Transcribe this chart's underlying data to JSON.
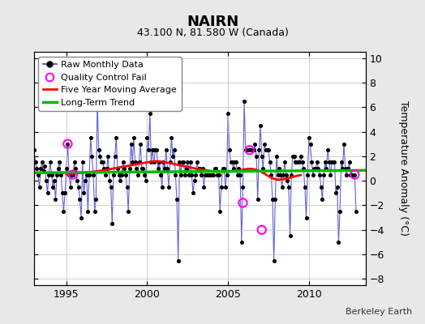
{
  "title": "NAIRN",
  "subtitle": "43.100 N, 81.580 W (Canada)",
  "ylabel": "Temperature Anomaly (°C)",
  "attribution": "Berkeley Earth",
  "xlim": [
    1993.0,
    2013.5
  ],
  "ylim": [
    -8.5,
    10.5
  ],
  "yticks": [
    -8,
    -6,
    -4,
    -2,
    0,
    2,
    4,
    6,
    8,
    10
  ],
  "xticks": [
    1995,
    2000,
    2005,
    2010
  ],
  "fig_bg_color": "#e8e8e8",
  "plot_bg_color": "#ffffff",
  "raw_color": "#4444cc",
  "dot_color": "#000000",
  "ma_color": "#ff0000",
  "trend_color": "#00bb00",
  "qc_color": "#ff00ff",
  "raw_data": [
    [
      1993.0,
      2.5
    ],
    [
      1993.083,
      1.5
    ],
    [
      1993.167,
      1.0
    ],
    [
      1993.25,
      0.5
    ],
    [
      1993.333,
      -0.5
    ],
    [
      1993.417,
      1.0
    ],
    [
      1993.5,
      1.5
    ],
    [
      1993.583,
      0.8
    ],
    [
      1993.667,
      1.2
    ],
    [
      1993.75,
      0.0
    ],
    [
      1993.833,
      -1.0
    ],
    [
      1993.917,
      0.5
    ],
    [
      1994.0,
      1.5
    ],
    [
      1994.083,
      0.5
    ],
    [
      1994.167,
      -0.5
    ],
    [
      1994.25,
      0.0
    ],
    [
      1994.333,
      -1.5
    ],
    [
      1994.417,
      0.5
    ],
    [
      1994.5,
      1.0
    ],
    [
      1994.583,
      1.5
    ],
    [
      1994.667,
      0.5
    ],
    [
      1994.75,
      -1.0
    ],
    [
      1994.833,
      -2.5
    ],
    [
      1994.917,
      -1.0
    ],
    [
      1995.0,
      1.0
    ],
    [
      1995.083,
      3.0
    ],
    [
      1995.167,
      0.5
    ],
    [
      1995.25,
      -0.5
    ],
    [
      1995.333,
      0.5
    ],
    [
      1995.417,
      0.5
    ],
    [
      1995.5,
      1.5
    ],
    [
      1995.583,
      1.0
    ],
    [
      1995.667,
      0.0
    ],
    [
      1995.75,
      -0.5
    ],
    [
      1995.833,
      -1.5
    ],
    [
      1995.917,
      -3.0
    ],
    [
      1996.0,
      1.5
    ],
    [
      1996.083,
      -1.0
    ],
    [
      1996.167,
      0.0
    ],
    [
      1996.25,
      0.5
    ],
    [
      1996.333,
      -2.5
    ],
    [
      1996.417,
      0.5
    ],
    [
      1996.5,
      3.5
    ],
    [
      1996.583,
      2.0
    ],
    [
      1996.667,
      0.5
    ],
    [
      1996.75,
      -2.5
    ],
    [
      1996.833,
      -1.5
    ],
    [
      1996.917,
      6.5
    ],
    [
      1997.0,
      2.5
    ],
    [
      1997.083,
      2.0
    ],
    [
      1997.167,
      1.5
    ],
    [
      1997.25,
      1.5
    ],
    [
      1997.333,
      1.0
    ],
    [
      1997.417,
      0.5
    ],
    [
      1997.5,
      1.0
    ],
    [
      1997.583,
      2.0
    ],
    [
      1997.667,
      0.0
    ],
    [
      1997.75,
      -0.5
    ],
    [
      1997.833,
      -3.5
    ],
    [
      1997.917,
      0.5
    ],
    [
      1998.0,
      2.0
    ],
    [
      1998.083,
      3.5
    ],
    [
      1998.167,
      1.0
    ],
    [
      1998.25,
      0.5
    ],
    [
      1998.333,
      0.0
    ],
    [
      1998.417,
      0.5
    ],
    [
      1998.5,
      1.5
    ],
    [
      1998.583,
      1.0
    ],
    [
      1998.667,
      0.5
    ],
    [
      1998.75,
      -0.5
    ],
    [
      1998.833,
      -2.5
    ],
    [
      1998.917,
      1.0
    ],
    [
      1999.0,
      3.0
    ],
    [
      1999.083,
      1.5
    ],
    [
      1999.167,
      3.5
    ],
    [
      1999.25,
      1.5
    ],
    [
      1999.333,
      1.0
    ],
    [
      1999.417,
      0.5
    ],
    [
      1999.5,
      1.5
    ],
    [
      1999.583,
      3.0
    ],
    [
      1999.667,
      1.0
    ],
    [
      1999.75,
      1.0
    ],
    [
      1999.833,
      0.5
    ],
    [
      1999.917,
      0.0
    ],
    [
      2000.0,
      3.5
    ],
    [
      2000.083,
      2.5
    ],
    [
      2000.167,
      5.5
    ],
    [
      2000.25,
      1.5
    ],
    [
      2000.333,
      2.5
    ],
    [
      2000.417,
      1.5
    ],
    [
      2000.5,
      2.5
    ],
    [
      2000.583,
      2.5
    ],
    [
      2000.667,
      1.0
    ],
    [
      2000.75,
      1.5
    ],
    [
      2000.833,
      0.5
    ],
    [
      2000.917,
      -0.5
    ],
    [
      2001.0,
      1.5
    ],
    [
      2001.083,
      1.0
    ],
    [
      2001.167,
      2.5
    ],
    [
      2001.25,
      1.0
    ],
    [
      2001.333,
      -0.5
    ],
    [
      2001.417,
      1.5
    ],
    [
      2001.5,
      3.5
    ],
    [
      2001.583,
      2.0
    ],
    [
      2001.667,
      2.5
    ],
    [
      2001.75,
      0.5
    ],
    [
      2001.833,
      -1.5
    ],
    [
      2001.917,
      -6.5
    ],
    [
      2002.0,
      1.5
    ],
    [
      2002.083,
      0.5
    ],
    [
      2002.167,
      1.5
    ],
    [
      2002.25,
      1.5
    ],
    [
      2002.333,
      0.5
    ],
    [
      2002.417,
      1.0
    ],
    [
      2002.5,
      1.5
    ],
    [
      2002.583,
      0.5
    ],
    [
      2002.667,
      1.5
    ],
    [
      2002.75,
      0.5
    ],
    [
      2002.833,
      -1.0
    ],
    [
      2002.917,
      0.0
    ],
    [
      2003.0,
      0.5
    ],
    [
      2003.083,
      1.5
    ],
    [
      2003.167,
      1.0
    ],
    [
      2003.25,
      1.0
    ],
    [
      2003.333,
      0.5
    ],
    [
      2003.417,
      1.0
    ],
    [
      2003.5,
      -0.5
    ],
    [
      2003.583,
      0.5
    ],
    [
      2003.667,
      0.5
    ],
    [
      2003.75,
      0.5
    ],
    [
      2003.833,
      0.5
    ],
    [
      2003.917,
      0.5
    ],
    [
      2004.0,
      0.5
    ],
    [
      2004.083,
      0.5
    ],
    [
      2004.167,
      1.0
    ],
    [
      2004.25,
      1.0
    ],
    [
      2004.333,
      0.5
    ],
    [
      2004.417,
      0.5
    ],
    [
      2004.5,
      -2.5
    ],
    [
      2004.583,
      -0.5
    ],
    [
      2004.667,
      1.0
    ],
    [
      2004.75,
      1.0
    ],
    [
      2004.833,
      -0.5
    ],
    [
      2004.917,
      0.5
    ],
    [
      2005.0,
      5.5
    ],
    [
      2005.083,
      2.5
    ],
    [
      2005.167,
      1.5
    ],
    [
      2005.25,
      1.5
    ],
    [
      2005.333,
      1.0
    ],
    [
      2005.417,
      1.5
    ],
    [
      2005.5,
      1.5
    ],
    [
      2005.583,
      0.5
    ],
    [
      2005.667,
      1.0
    ],
    [
      2005.75,
      0.5
    ],
    [
      2005.833,
      -5.0
    ],
    [
      2005.917,
      -0.5
    ],
    [
      2006.0,
      6.5
    ],
    [
      2006.083,
      2.5
    ],
    [
      2006.167,
      2.5
    ],
    [
      2006.25,
      2.5
    ],
    [
      2006.333,
      2.5
    ],
    [
      2006.417,
      2.5
    ],
    [
      2006.5,
      2.5
    ],
    [
      2006.583,
      2.5
    ],
    [
      2006.667,
      3.0
    ],
    [
      2006.75,
      2.0
    ],
    [
      2006.833,
      -1.5
    ],
    [
      2006.917,
      2.5
    ],
    [
      2007.0,
      4.5
    ],
    [
      2007.083,
      2.0
    ],
    [
      2007.167,
      1.0
    ],
    [
      2007.25,
      3.0
    ],
    [
      2007.333,
      2.5
    ],
    [
      2007.417,
      2.5
    ],
    [
      2007.5,
      2.5
    ],
    [
      2007.583,
      1.5
    ],
    [
      2007.667,
      0.5
    ],
    [
      2007.75,
      -1.5
    ],
    [
      2007.833,
      -6.5
    ],
    [
      2007.917,
      -1.5
    ],
    [
      2008.0,
      2.0
    ],
    [
      2008.083,
      0.5
    ],
    [
      2008.167,
      1.0
    ],
    [
      2008.25,
      0.5
    ],
    [
      2008.333,
      -0.5
    ],
    [
      2008.417,
      0.5
    ],
    [
      2008.5,
      1.5
    ],
    [
      2008.583,
      0.5
    ],
    [
      2008.667,
      0.0
    ],
    [
      2008.75,
      -0.5
    ],
    [
      2008.833,
      -4.5
    ],
    [
      2008.917,
      0.5
    ],
    [
      2009.0,
      2.0
    ],
    [
      2009.083,
      2.0
    ],
    [
      2009.167,
      1.5
    ],
    [
      2009.25,
      1.5
    ],
    [
      2009.333,
      1.5
    ],
    [
      2009.417,
      1.5
    ],
    [
      2009.5,
      2.0
    ],
    [
      2009.583,
      1.5
    ],
    [
      2009.667,
      1.0
    ],
    [
      2009.75,
      -0.5
    ],
    [
      2009.833,
      -3.0
    ],
    [
      2009.917,
      0.5
    ],
    [
      2010.0,
      3.5
    ],
    [
      2010.083,
      3.0
    ],
    [
      2010.167,
      1.5
    ],
    [
      2010.25,
      0.5
    ],
    [
      2010.333,
      1.0
    ],
    [
      2010.417,
      1.0
    ],
    [
      2010.5,
      1.5
    ],
    [
      2010.583,
      1.0
    ],
    [
      2010.667,
      0.5
    ],
    [
      2010.75,
      -0.5
    ],
    [
      2010.833,
      -1.5
    ],
    [
      2010.917,
      0.5
    ],
    [
      2011.0,
      1.5
    ],
    [
      2011.083,
      1.0
    ],
    [
      2011.167,
      2.5
    ],
    [
      2011.25,
      1.5
    ],
    [
      2011.333,
      0.5
    ],
    [
      2011.417,
      1.5
    ],
    [
      2011.5,
      1.5
    ],
    [
      2011.583,
      1.5
    ],
    [
      2011.667,
      -1.0
    ],
    [
      2011.75,
      -0.5
    ],
    [
      2011.833,
      -5.0
    ],
    [
      2011.917,
      -2.5
    ],
    [
      2012.0,
      1.5
    ],
    [
      2012.083,
      1.0
    ],
    [
      2012.167,
      3.0
    ],
    [
      2012.25,
      1.0
    ],
    [
      2012.333,
      0.5
    ],
    [
      2012.417,
      1.0
    ],
    [
      2012.5,
      1.5
    ],
    [
      2012.583,
      0.5
    ],
    [
      2012.667,
      0.5
    ],
    [
      2012.75,
      0.5
    ],
    [
      2012.833,
      0.5
    ],
    [
      2012.917,
      -2.5
    ]
  ],
  "qc_fail": [
    [
      1995.083,
      3.0
    ],
    [
      1995.417,
      0.5
    ],
    [
      2006.333,
      2.5
    ],
    [
      2005.917,
      -1.8
    ],
    [
      2007.083,
      -4.0
    ],
    [
      2012.833,
      0.5
    ]
  ],
  "moving_avg": [
    [
      1995.0,
      0.55
    ],
    [
      1995.25,
      0.58
    ],
    [
      1995.5,
      0.6
    ],
    [
      1995.75,
      0.63
    ],
    [
      1996.0,
      0.65
    ],
    [
      1996.25,
      0.68
    ],
    [
      1996.5,
      0.72
    ],
    [
      1996.75,
      0.76
    ],
    [
      1997.0,
      0.8
    ],
    [
      1997.25,
      0.85
    ],
    [
      1997.5,
      0.9
    ],
    [
      1997.75,
      0.96
    ],
    [
      1998.0,
      1.02
    ],
    [
      1998.25,
      1.08
    ],
    [
      1998.5,
      1.14
    ],
    [
      1998.75,
      1.2
    ],
    [
      1999.0,
      1.26
    ],
    [
      1999.25,
      1.32
    ],
    [
      1999.5,
      1.38
    ],
    [
      1999.75,
      1.44
    ],
    [
      2000.0,
      1.5
    ],
    [
      2000.25,
      1.56
    ],
    [
      2000.5,
      1.6
    ],
    [
      2000.75,
      1.58
    ],
    [
      2001.0,
      1.53
    ],
    [
      2001.25,
      1.47
    ],
    [
      2001.5,
      1.41
    ],
    [
      2001.75,
      1.34
    ],
    [
      2002.0,
      1.27
    ],
    [
      2002.25,
      1.2
    ],
    [
      2002.5,
      1.13
    ],
    [
      2002.75,
      1.06
    ],
    [
      2003.0,
      0.99
    ],
    [
      2003.25,
      0.93
    ],
    [
      2003.5,
      0.88
    ],
    [
      2003.75,
      0.83
    ],
    [
      2004.0,
      0.79
    ],
    [
      2004.25,
      0.76
    ],
    [
      2004.5,
      0.74
    ],
    [
      2004.75,
      0.73
    ],
    [
      2005.0,
      0.74
    ],
    [
      2005.25,
      0.76
    ],
    [
      2005.5,
      0.8
    ],
    [
      2005.75,
      0.86
    ],
    [
      2006.0,
      0.93
    ],
    [
      2006.25,
      0.97
    ],
    [
      2006.5,
      0.96
    ],
    [
      2006.75,
      0.89
    ],
    [
      2007.0,
      0.76
    ],
    [
      2007.25,
      0.58
    ],
    [
      2007.5,
      0.38
    ],
    [
      2007.75,
      0.2
    ],
    [
      2008.0,
      0.1
    ],
    [
      2008.25,
      0.1
    ],
    [
      2008.5,
      0.15
    ],
    [
      2008.75,
      0.22
    ],
    [
      2009.0,
      0.32
    ],
    [
      2009.25,
      0.4
    ],
    [
      2009.5,
      0.46
    ]
  ],
  "trend_x": [
    1993.0,
    2013.5
  ],
  "trend_y": [
    0.65,
    0.85
  ]
}
